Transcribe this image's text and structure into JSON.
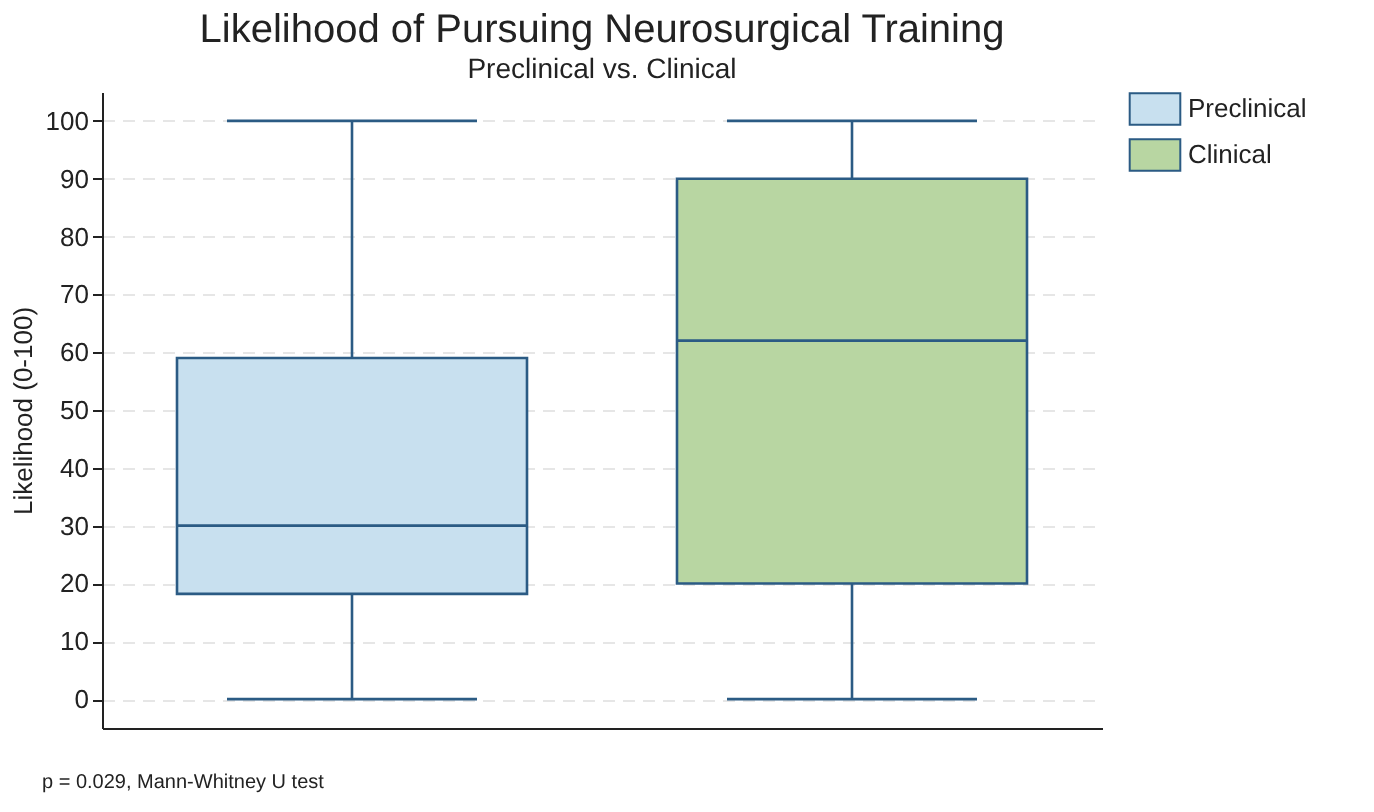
{
  "chart_data": {
    "type": "box",
    "title": "Likelihood of Pursuing Neurosurgical Training",
    "subtitle": "Preclinical vs. Clinical",
    "ylabel": "Likelihood (0-100)",
    "categories": [
      null,
      null
    ],
    "series": [
      {
        "name": "Preclinical",
        "color": "#c8e0ef",
        "boxes": [
          {
            "low": 0,
            "q1": 18.2,
            "median": 30,
            "q3": 59,
            "high": 100
          },
          null
        ]
      },
      {
        "name": "Clinical",
        "color": "#b8d6a2",
        "boxes": [
          null,
          {
            "low": 0,
            "q1": 20,
            "median": 62,
            "q3": 90,
            "high": 100
          }
        ]
      }
    ],
    "ylim": [
      -5,
      105
    ],
    "yticks": [
      0,
      10,
      20,
      30,
      40,
      50,
      60,
      70,
      80,
      90,
      100
    ],
    "grid": "y",
    "legend": "right",
    "annotations": [
      "p = 0.029, Mann-Whitney U test"
    ]
  }
}
